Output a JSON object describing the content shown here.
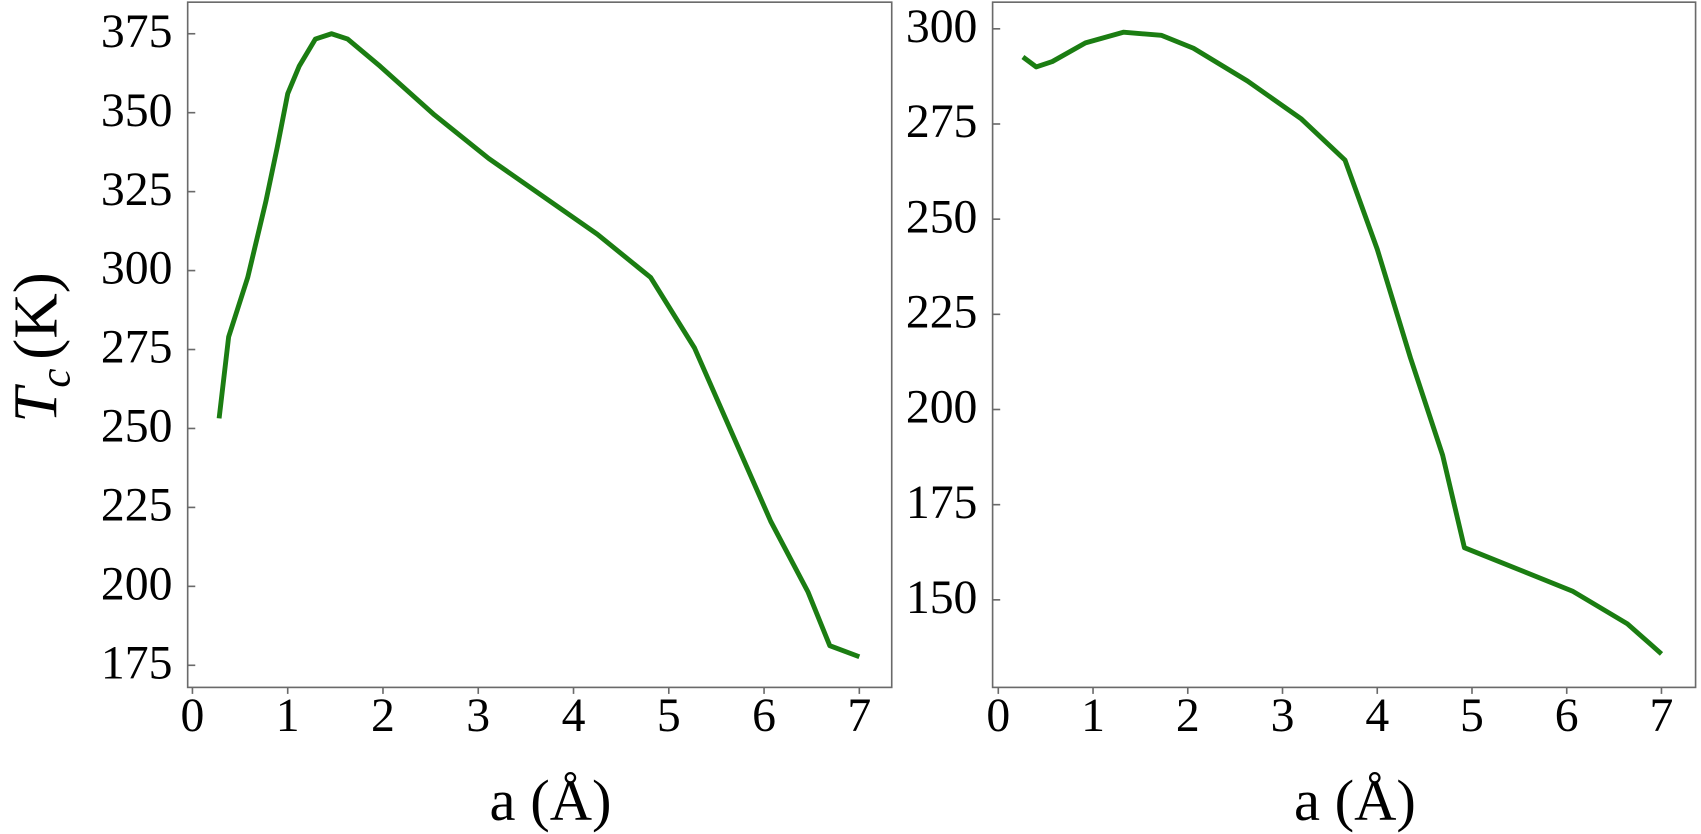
{
  "chart_data": [
    {
      "type": "line",
      "xlabel": "a (Å)",
      "ylabel": {
        "symbol": "T",
        "subscript": "c",
        "unit": "(K)"
      },
      "x": [
        0.28,
        0.38,
        0.58,
        0.77,
        0.89,
        1.0,
        1.12,
        1.29,
        1.46,
        1.63,
        1.97,
        2.54,
        3.11,
        3.68,
        4.25,
        4.81,
        5.27,
        5.72,
        6.07,
        6.46,
        6.69,
        7.0
      ],
      "series": [
        {
          "color": "#1b7d12",
          "values": [
            253.2,
            279,
            297.8,
            321.8,
            339,
            356,
            364.7,
            373.3,
            375,
            373.3,
            364.7,
            349.3,
            335.5,
            323.5,
            311.5,
            297.8,
            275.5,
            244.6,
            220.6,
            198.3,
            181.2,
            177.7
          ]
        }
      ],
      "xlim": [
        -0.05,
        7.34
      ],
      "xticks": [
        0,
        1,
        2,
        3,
        4,
        5,
        6,
        7
      ],
      "ylim": [
        168,
        385
      ],
      "yticks": [
        175,
        200,
        225,
        250,
        275,
        300,
        325,
        350,
        375
      ]
    },
    {
      "type": "line",
      "xlabel": "a (Å)",
      "x": [
        0.26,
        0.4,
        0.57,
        0.92,
        1.32,
        1.72,
        2.06,
        2.63,
        3.2,
        3.66,
        4.0,
        4.35,
        4.69,
        4.92,
        5.49,
        6.06,
        6.64,
        7.0
      ],
      "series": [
        {
          "color": "#1b7d12",
          "values": [
            292.6,
            290,
            291.4,
            296.3,
            299.1,
            298.3,
            294.9,
            286.3,
            276.3,
            265.5,
            242.1,
            213.6,
            188,
            163.7,
            158,
            152.3,
            143.7,
            135.8
          ]
        }
      ],
      "xlim": [
        -0.06,
        7.36
      ],
      "xticks": [
        0,
        1,
        2,
        3,
        4,
        5,
        6,
        7
      ],
      "ylim": [
        127,
        307
      ],
      "yticks": [
        150,
        175,
        200,
        225,
        250,
        275,
        300
      ]
    }
  ]
}
